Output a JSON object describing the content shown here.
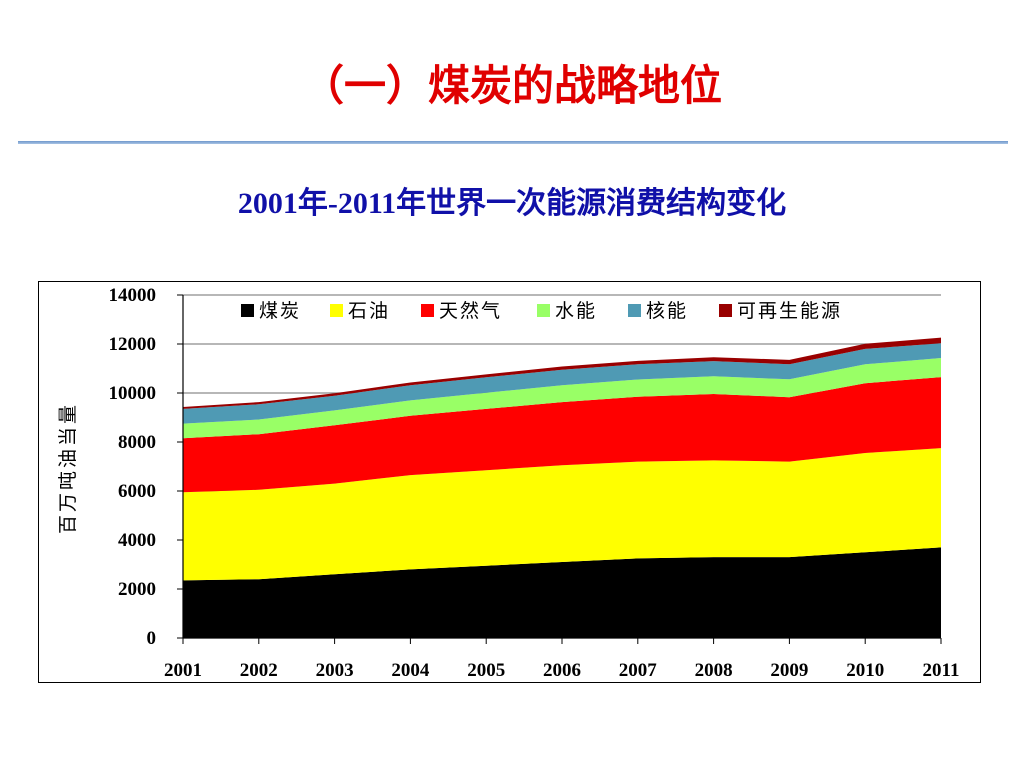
{
  "slide": {
    "title": "（一）煤炭的战略地位",
    "chart_heading": "2001年-2011年世界一次能源消费结构变化"
  },
  "colors": {
    "title": "#e00000",
    "heading": "#1010a8",
    "rule": "#6f98cc"
  },
  "chart_data": {
    "type": "area",
    "stacked": true,
    "categories": [
      "2001",
      "2002",
      "2003",
      "2004",
      "2005",
      "2006",
      "2007",
      "2008",
      "2009",
      "2010",
      "2011"
    ],
    "ylabel": "百万吨油当量",
    "ylim": [
      0,
      14000
    ],
    "yticks": [
      0,
      2000,
      4000,
      6000,
      8000,
      10000,
      12000,
      14000
    ],
    "grid": true,
    "legend_position": "top",
    "series": [
      {
        "name": "煤炭",
        "color": "#000000",
        "values": [
          2350,
          2400,
          2600,
          2800,
          2950,
          3100,
          3250,
          3300,
          3300,
          3500,
          3700
        ]
      },
      {
        "name": "石油",
        "color": "#ffff00",
        "values": [
          3600,
          3650,
          3700,
          3850,
          3900,
          3950,
          3950,
          3950,
          3900,
          4050,
          4050
        ]
      },
      {
        "name": "天然气",
        "color": "#ff0000",
        "values": [
          2200,
          2270,
          2380,
          2420,
          2500,
          2580,
          2650,
          2710,
          2630,
          2850,
          2900
        ]
      },
      {
        "name": "水能",
        "color": "#99ff66",
        "values": [
          600,
          600,
          610,
          630,
          660,
          690,
          700,
          720,
          730,
          770,
          780
        ]
      },
      {
        "name": "核能",
        "color": "#4f9ab4",
        "values": [
          600,
          620,
          600,
          620,
          630,
          630,
          620,
          620,
          610,
          630,
          600
        ]
      },
      {
        "name": "可再生能源",
        "color": "#990000",
        "values": [
          80,
          90,
          100,
          110,
          120,
          130,
          140,
          160,
          180,
          210,
          230
        ]
      }
    ]
  }
}
